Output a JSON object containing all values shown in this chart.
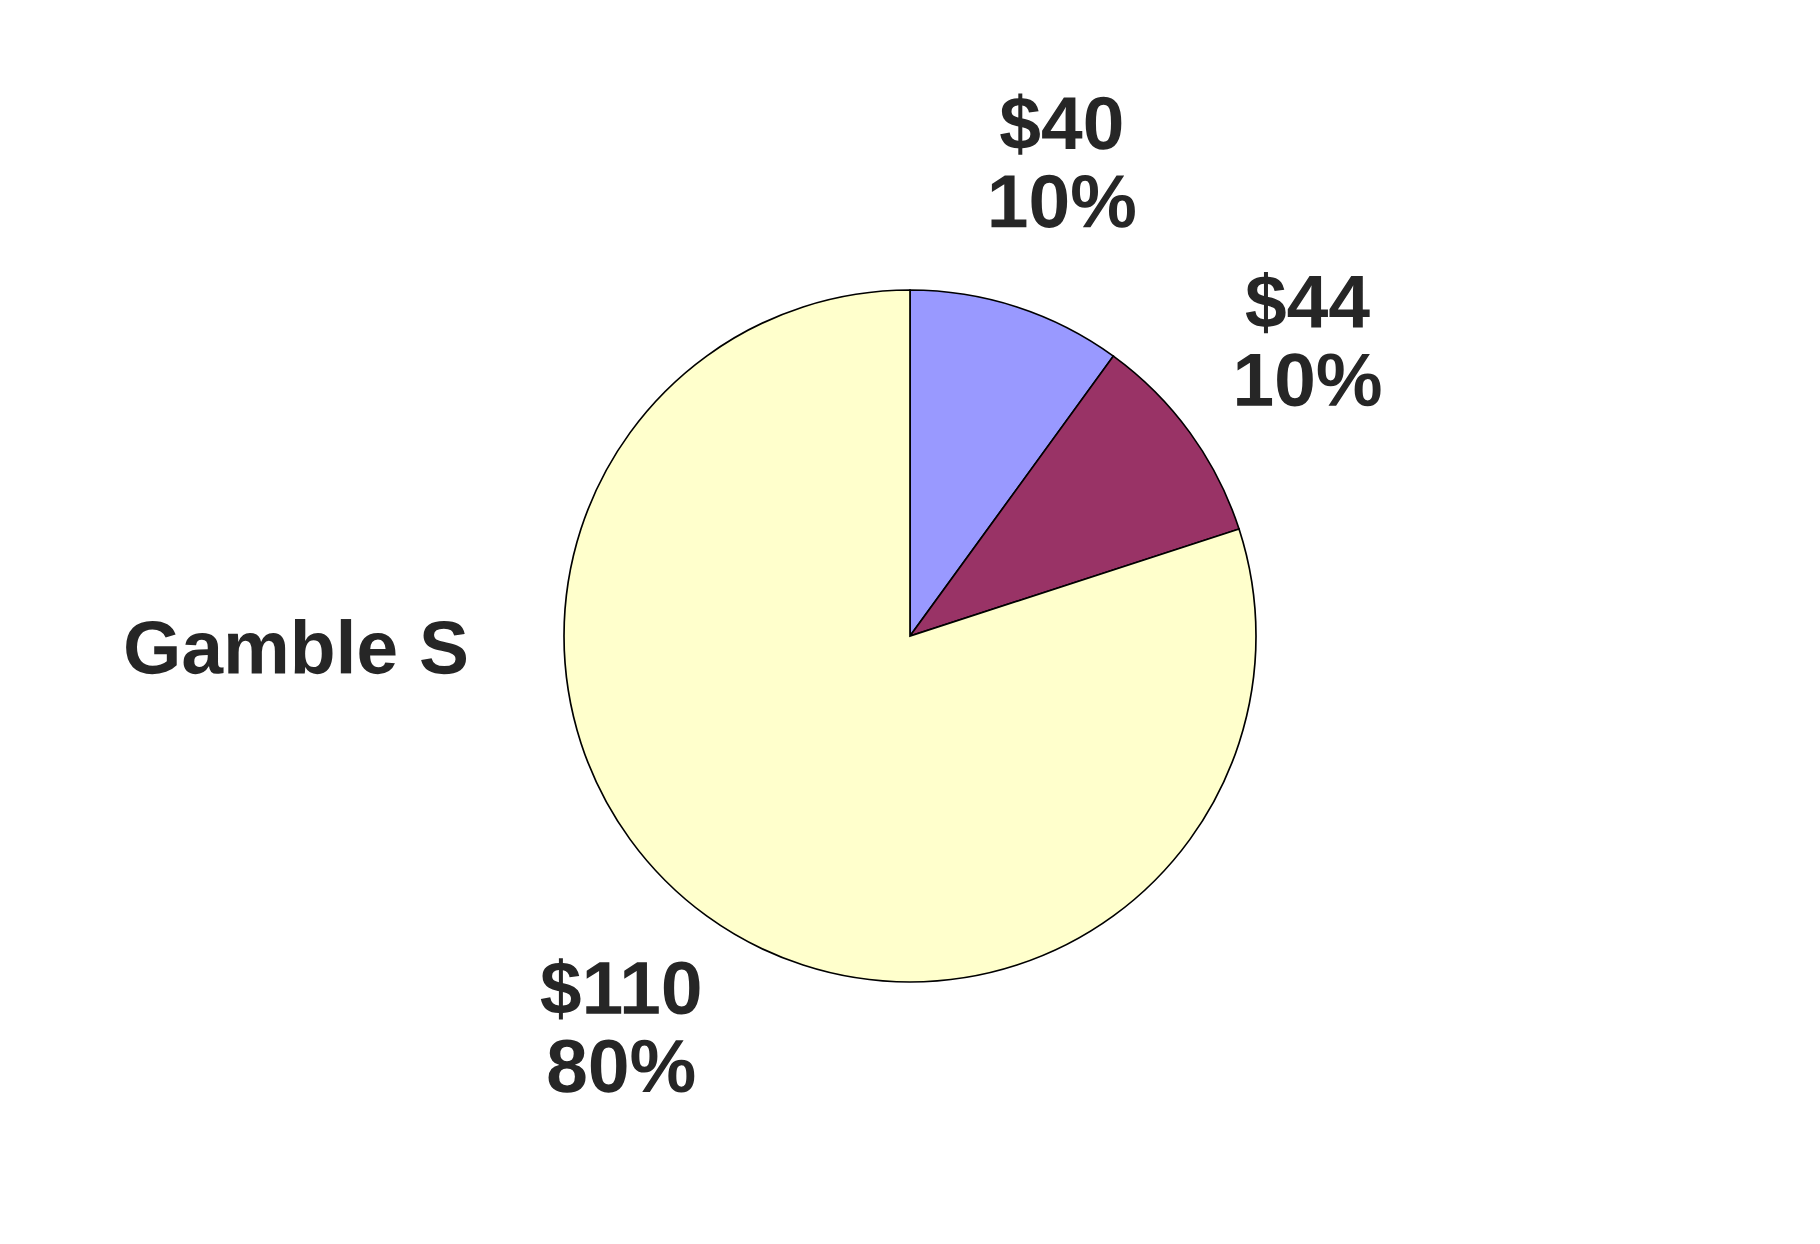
{
  "chart_data": {
    "type": "pie",
    "title": "Gamble S",
    "categories": [
      "$40",
      "$44",
      "$110"
    ],
    "values": [
      10,
      10,
      80
    ],
    "value_labels": [
      "10%",
      "10%",
      "80%"
    ],
    "colors": [
      "#9999ff",
      "#993366",
      "#ffffcc"
    ]
  }
}
